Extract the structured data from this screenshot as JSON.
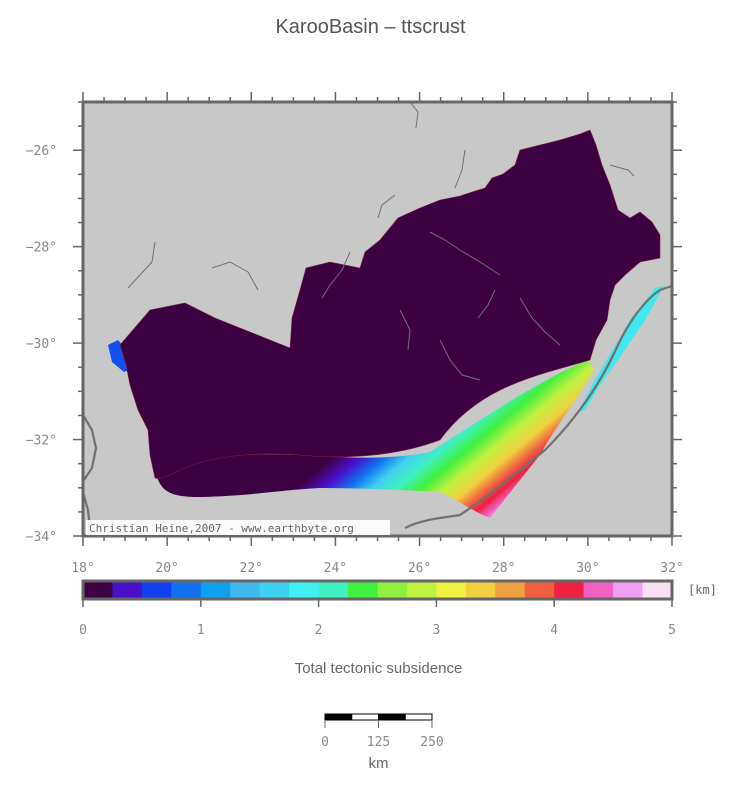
{
  "title": "KarooBasin – ttscrust",
  "axes": {
    "lat_ticks": [
      {
        "value": -26,
        "label": "−26°"
      },
      {
        "value": -28,
        "label": "−28°"
      },
      {
        "value": -30,
        "label": "−30°"
      },
      {
        "value": -32,
        "label": "−32°"
      },
      {
        "value": -34,
        "label": "−34°"
      }
    ],
    "lon_ticks": [
      {
        "value": 18,
        "label": "18°"
      },
      {
        "value": 20,
        "label": "20°"
      },
      {
        "value": 22,
        "label": "22°"
      },
      {
        "value": 24,
        "label": "24°"
      },
      {
        "value": 26,
        "label": "26°"
      },
      {
        "value": 28,
        "label": "28°"
      },
      {
        "value": 30,
        "label": "30°"
      },
      {
        "value": 32,
        "label": "32°"
      }
    ],
    "lon_range": [
      18,
      32
    ],
    "lat_range": [
      -34,
      -25
    ]
  },
  "credit": "Christian Heine,2007 - www.earthbyte.org",
  "colorbar": {
    "title": "Total tectonic subsidence",
    "unit": "[km]",
    "range": [
      0,
      5
    ],
    "tick_labels": [
      "0",
      "1",
      "2",
      "3",
      "4",
      "5"
    ],
    "colors": [
      "#3d0040",
      "#4a10c8",
      "#1040f0",
      "#1070f0",
      "#10a0f0",
      "#40b8f0",
      "#40d0f0",
      "#40f0f0",
      "#40f0c0",
      "#40f040",
      "#90f040",
      "#c0f040",
      "#f0f040",
      "#f0d040",
      "#f0a040",
      "#f06040",
      "#f02040",
      "#f060c0",
      "#f0a0f0",
      "#f8e0f0"
    ]
  },
  "scalebar": {
    "tick_labels": [
      "0",
      "125",
      "250"
    ],
    "unit": "km"
  },
  "colors": {
    "land": "#c8c8c8",
    "basin_deep": "#3d0040",
    "frame": "#666666",
    "rivers": "#707070"
  }
}
